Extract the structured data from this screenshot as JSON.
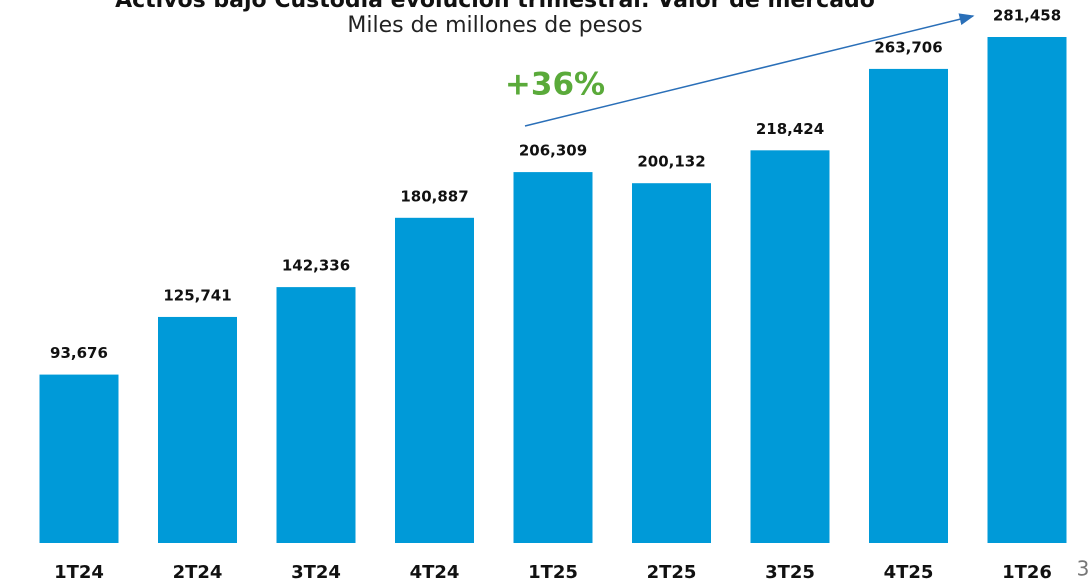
{
  "chart_data": {
    "type": "bar",
    "title": "Activos bajo Custodia evolución trimestral: Valor de mercado",
    "subtitle": "Miles de millones de pesos",
    "annotation": "+36%",
    "categories": [
      "1T24",
      "2T24",
      "3T24",
      "4T24",
      "1T25",
      "2T25",
      "3T25",
      "4T25",
      "1T26"
    ],
    "values": [
      93676,
      125741,
      142336,
      180887,
      206309,
      200132,
      218424,
      263706,
      281458
    ],
    "value_labels": [
      "93,676",
      "125,741",
      "142,336",
      "180,887",
      "206,309",
      "200,132",
      "218,424",
      "263,706",
      "281,458"
    ],
    "color": "#009ad8"
  },
  "slide_number": 3
}
